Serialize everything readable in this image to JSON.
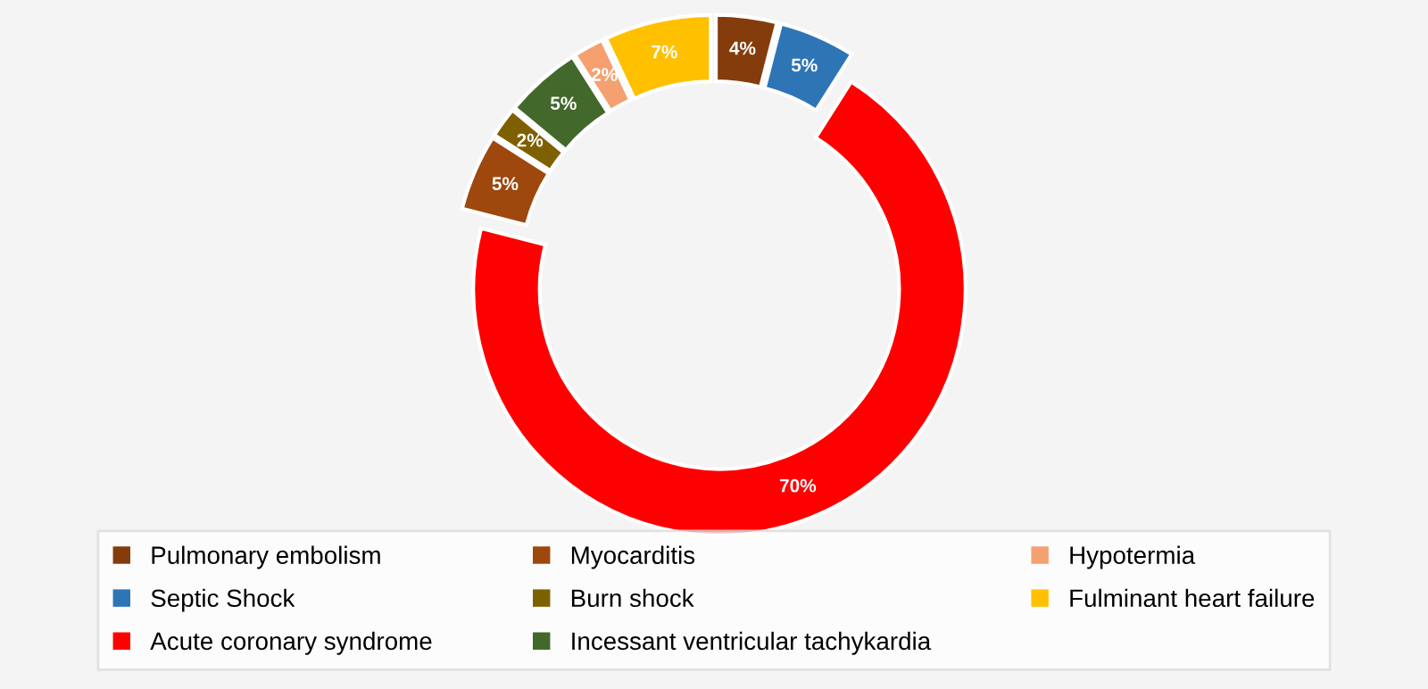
{
  "chart_data": {
    "type": "donut",
    "categories": [
      "Pulmonary embolism",
      "Septic Shock",
      "Acute coronary syndrome",
      "Myocarditis",
      "Burn shock",
      "Incessant ventricular tachykardia",
      "Hypotermia",
      "Fulminant heart failure"
    ],
    "values": [
      4,
      5,
      70,
      5,
      2,
      5,
      2,
      7
    ],
    "colors": [
      "#843c0c",
      "#2e75b6",
      "#ff0000",
      "#9e480e",
      "#7f6000",
      "#43682b",
      "#f4a070",
      "#ffc000"
    ],
    "value_labels": [
      "4%",
      "5%",
      "70%",
      "5%",
      "2%",
      "5%",
      "2%",
      "7%"
    ],
    "legend": "bottom"
  }
}
